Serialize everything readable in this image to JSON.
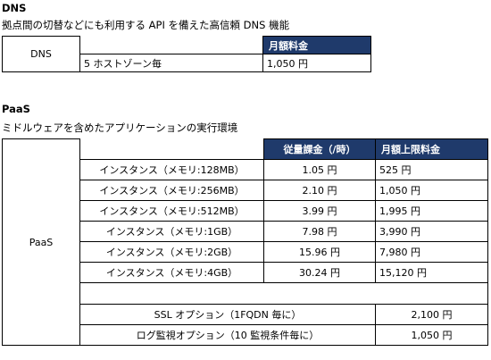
{
  "dns": {
    "title": "DNS",
    "description": "拠点間の切替などにも利用する API を備えた高信頼 DNS 機能",
    "header": "月額料金",
    "row_label": "DNS",
    "item": "5 ホストゾーン毎",
    "price": "1,050 円"
  },
  "paas": {
    "title": "PaaS",
    "description": "ミドルウェアを含めたアプリケーションの実行環境",
    "row_label": "PaaS",
    "headers": {
      "usage_fee": "従量課金（/時）",
      "monthly_cap": "月額上限料金"
    },
    "rows": [
      {
        "name": "インスタンス（メモリ:128MB）",
        "hourly": "1.05 円",
        "cap": "525 円"
      },
      {
        "name": "インスタンス（メモリ:256MB）",
        "hourly": "2.10 円",
        "cap": "1,050 円"
      },
      {
        "name": "インスタンス（メモリ:512MB）",
        "hourly": "3.99 円",
        "cap": "1,995 円"
      },
      {
        "name": "インスタンス（メモリ:1GB）",
        "hourly": "7.98 円",
        "cap": "3,990 円"
      },
      {
        "name": "インスタンス（メモリ:2GB）",
        "hourly": "15.96 円",
        "cap": "7,980 円"
      },
      {
        "name": "インスタンス（メモリ:4GB）",
        "hourly": "30.24 円",
        "cap": "15,120 円"
      }
    ],
    "options": [
      {
        "name": "SSL オプション（1FQDN 毎に）",
        "price": "2,100 円"
      },
      {
        "name": "ログ監視オプション（10 監視条件毎に）",
        "price": "1,050 円"
      }
    ]
  }
}
